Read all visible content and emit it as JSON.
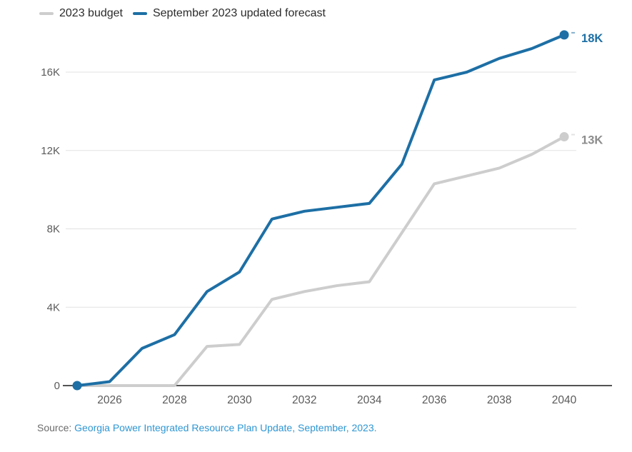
{
  "legend": {
    "items": [
      {
        "id": "budget",
        "label": "2023 budget",
        "color": "#cdcdcd"
      },
      {
        "id": "forecast",
        "label": "September 2023 updated forecast",
        "color": "#1d6fa5"
      }
    ]
  },
  "source": {
    "prefix": "Source: ",
    "link_text": "Georgia Power Integrated Resource Plan Update, September, 2023."
  },
  "colors": {
    "gridline": "#e2e2e2",
    "axis_line": "#1a1a1a",
    "tick_label": "#5a5a5a",
    "budget_line": "#cdcdcd",
    "forecast_line": "#1d6fa5",
    "budget_end_label": "#8c8c8c",
    "forecast_end_label": "#1d6fa5",
    "source_link": "#2e96d2"
  },
  "chart_data": {
    "type": "line",
    "title": "",
    "xlabel": "",
    "ylabel": "",
    "grid": "horizontal",
    "legend_position": "top-left",
    "x": [
      2025,
      2026,
      2027,
      2028,
      2029,
      2030,
      2031,
      2032,
      2033,
      2034,
      2035,
      2036,
      2037,
      2038,
      2039,
      2040
    ],
    "xticks": [
      2026,
      2028,
      2030,
      2032,
      2034,
      2036,
      2038,
      2040
    ],
    "yticks": [
      {
        "value": 0,
        "label": "0"
      },
      {
        "value": 4000,
        "label": "4K"
      },
      {
        "value": 8000,
        "label": "8K"
      },
      {
        "value": 12000,
        "label": "12K"
      },
      {
        "value": 16000,
        "label": "16K"
      }
    ],
    "ylim": [
      0,
      18500
    ],
    "series": [
      {
        "id": "budget",
        "name": "2023 budget",
        "color": "#cdcdcd",
        "values": [
          0,
          0,
          0,
          0,
          2000,
          2100,
          4400,
          4800,
          5100,
          5300,
          7800,
          10300,
          10700,
          11100,
          11800,
          12700
        ],
        "start_marker": false,
        "end_label": "13K",
        "end_label_color": "#8c8c8c"
      },
      {
        "id": "forecast",
        "name": "September 2023 updated forecast",
        "color": "#1d6fa5",
        "values": [
          0,
          200,
          1900,
          2600,
          4800,
          5800,
          8500,
          8900,
          9100,
          9300,
          11300,
          15600,
          16000,
          16700,
          17200,
          17900
        ],
        "start_marker": true,
        "end_label": "18K",
        "end_label_color": "#1d6fa5"
      }
    ]
  }
}
